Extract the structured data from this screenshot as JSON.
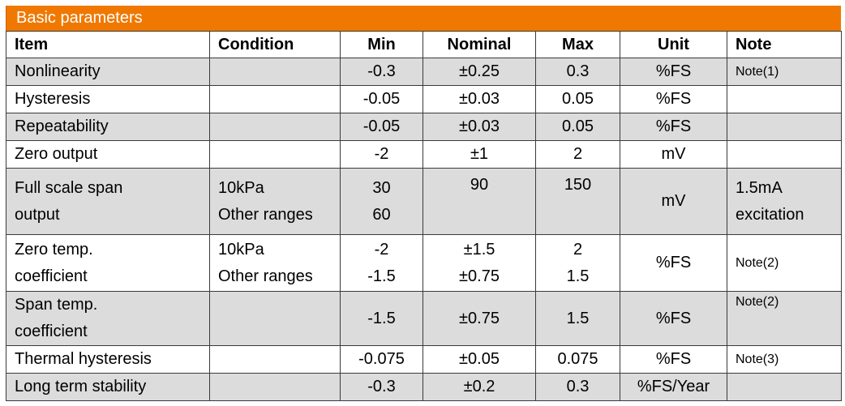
{
  "title": "Basic parameters",
  "headers": {
    "item": "Item",
    "condition": "Condition",
    "min": "Min",
    "nominal": "Nominal",
    "max": "Max",
    "unit": "Unit",
    "note": "Note"
  },
  "rows": [
    {
      "item": "Nonlinearity",
      "condition": "",
      "min": "-0.3",
      "nominal": "±0.25",
      "max": "0.3",
      "unit": "%FS",
      "note": "Note(1)"
    },
    {
      "item": "Hysteresis",
      "condition": "",
      "min": "-0.05",
      "nominal": "±0.03",
      "max": "0.05",
      "unit": "%FS",
      "note": ""
    },
    {
      "item": "Repeatability",
      "condition": "",
      "min": "-0.05",
      "nominal": "±0.03",
      "max": "0.05",
      "unit": "%FS",
      "note": ""
    },
    {
      "item": "Zero output",
      "condition": "",
      "min": "-2",
      "nominal": "±1",
      "max": "2",
      "unit": "mV",
      "note": ""
    },
    {
      "item_l1": "Full scale span",
      "item_l2": "output",
      "cond_l1": "10kPa",
      "cond_l2": "Other ranges",
      "min_l1": "30",
      "min_l2": "60",
      "nominal": "90",
      "max": "150",
      "unit": "mV",
      "note_l1": "1.5mA",
      "note_l2": "excitation"
    },
    {
      "item_l1": "Zero temp.",
      "item_l2": "coefficient",
      "cond_l1": "10kPa",
      "cond_l2": "Other ranges",
      "min_l1": "-2",
      "min_l2": "-1.5",
      "nom_l1": "±1.5",
      "nom_l2": "±0.75",
      "max_l1": "2",
      "max_l2": "1.5",
      "unit": "%FS",
      "note": "Note(2)"
    },
    {
      "item_l1": "Span temp.",
      "item_l2": "coefficient",
      "condition": "",
      "min": "-1.5",
      "nominal": "±0.75",
      "max": "1.5",
      "unit": "%FS",
      "note": "Note(2)"
    },
    {
      "item": "Thermal hysteresis",
      "condition": "",
      "min": "-0.075",
      "nominal": "±0.05",
      "max": "0.075",
      "unit": "%FS",
      "note": "Note(3)"
    },
    {
      "item": "Long term stability",
      "condition": "",
      "min": "-0.3",
      "nominal": "±0.2",
      "max": "0.3",
      "unit": "%FS/Year",
      "note": ""
    }
  ]
}
